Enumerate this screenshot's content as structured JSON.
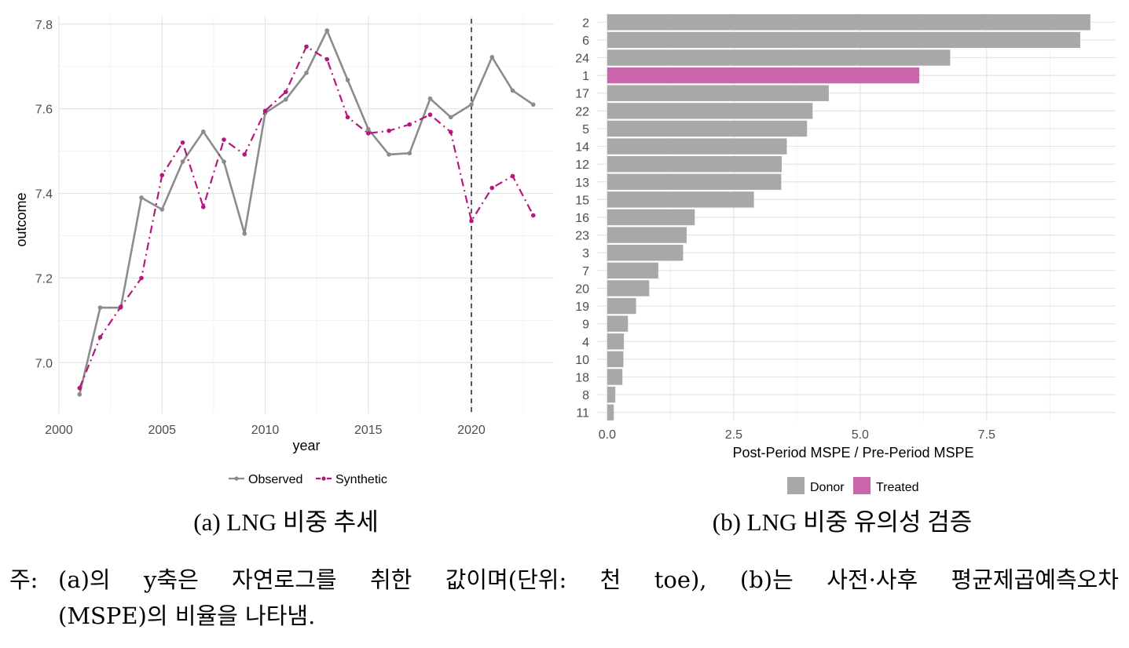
{
  "chart_data": [
    {
      "type": "line",
      "xlabel": "year",
      "ylabel": "outcome",
      "xlim": [
        2000,
        2024
      ],
      "ylim": [
        6.88,
        7.82
      ],
      "xticks": [
        2000,
        2005,
        2010,
        2015,
        2020
      ],
      "yticks": [
        7.0,
        7.2,
        7.4,
        7.6,
        7.8
      ],
      "ytick_labels": [
        "7.0",
        "7.2",
        "7.4",
        "7.6",
        "7.8"
      ],
      "vline": 2020,
      "grid": true,
      "legend_position": "bottom",
      "x": [
        2001,
        2002,
        2003,
        2004,
        2005,
        2006,
        2007,
        2008,
        2009,
        2010,
        2011,
        2012,
        2013,
        2014,
        2015,
        2016,
        2017,
        2018,
        2019,
        2020,
        2021,
        2022,
        2023
      ],
      "series": [
        {
          "name": "Observed",
          "color": "#8c8c8c",
          "style": "solid",
          "values": [
            6.925,
            7.13,
            7.13,
            7.39,
            7.362,
            7.475,
            7.546,
            7.475,
            7.305,
            7.59,
            7.622,
            7.685,
            7.785,
            7.668,
            7.552,
            7.492,
            7.495,
            7.624,
            7.58,
            7.61,
            7.722,
            7.643,
            7.61
          ]
        },
        {
          "name": "Synthetic",
          "color": "#b5177c",
          "style": "dashdot",
          "values": [
            6.94,
            7.06,
            7.132,
            7.2,
            7.443,
            7.52,
            7.368,
            7.527,
            7.492,
            7.595,
            7.64,
            7.747,
            7.717,
            7.58,
            7.542,
            7.548,
            7.563,
            7.586,
            7.545,
            7.335,
            7.413,
            7.441,
            7.348
          ]
        }
      ]
    },
    {
      "type": "bar",
      "orientation": "horizontal",
      "xlabel": "Post-Period MSPE / Pre-Period MSPE",
      "xlim": [
        -0.2,
        10.05
      ],
      "xticks": [
        0.0,
        2.5,
        5.0,
        7.5
      ],
      "xtick_labels": [
        "0.0",
        "2.5",
        "5.0",
        "7.5"
      ],
      "grid": true,
      "legend_position": "bottom",
      "categories": [
        "2",
        "6",
        "24",
        "1",
        "17",
        "22",
        "5",
        "14",
        "12",
        "13",
        "15",
        "16",
        "23",
        "3",
        "7",
        "20",
        "19",
        "9",
        "4",
        "10",
        "18",
        "8",
        "11"
      ],
      "values": [
        9.55,
        9.35,
        6.78,
        6.17,
        4.38,
        4.06,
        3.95,
        3.55,
        3.45,
        3.44,
        2.9,
        1.73,
        1.57,
        1.5,
        1.01,
        0.83,
        0.57,
        0.41,
        0.33,
        0.32,
        0.3,
        0.16,
        0.13
      ],
      "groups": [
        "Donor",
        "Donor",
        "Donor",
        "Treated",
        "Donor",
        "Donor",
        "Donor",
        "Donor",
        "Donor",
        "Donor",
        "Donor",
        "Donor",
        "Donor",
        "Donor",
        "Donor",
        "Donor",
        "Donor",
        "Donor",
        "Donor",
        "Donor",
        "Donor",
        "Donor",
        "Donor"
      ],
      "legend": [
        {
          "name": "Donor",
          "color": "#a8a8a8"
        },
        {
          "name": "Treated",
          "color": "#cc66aa"
        }
      ]
    }
  ],
  "captions": {
    "a": "(a) LNG 비중 추세",
    "b": "(b) LNG 비중 유의성 검증"
  },
  "note": {
    "label": "주:",
    "line1": "(a)의 y축은 자연로그를 취한 값이며(단위: 천 toe), (b)는 사전·사후 평균제곱예측오차",
    "line2": "(MSPE)의 비율을 나타냄."
  }
}
